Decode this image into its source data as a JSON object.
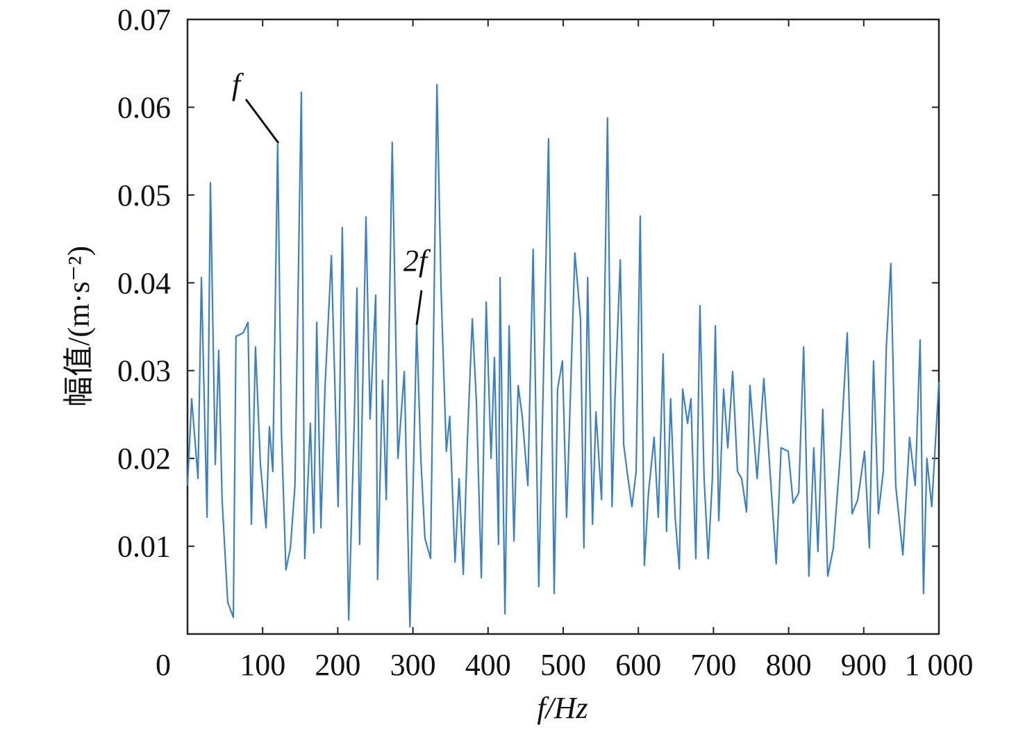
{
  "chart_data": {
    "type": "line",
    "x_label": "f/Hz",
    "y_label": "幅值/(m·s⁻²)",
    "annotations": [
      "f",
      "2f"
    ],
    "xlim": [
      0,
      1000
    ],
    "xticks": [
      0,
      100,
      200,
      300,
      400,
      500,
      600,
      700,
      800,
      900,
      {
        "value": 1000,
        "label": "1 000"
      }
    ],
    "ylim": [
      0,
      0.07
    ],
    "yticks": [
      0.01,
      0.02,
      0.03,
      0.04,
      0.05,
      0.06,
      0.07
    ],
    "series": [
      {
        "color": "#3b80c3",
        "x": [
          0,
          5.5,
          14,
          18.5,
          26,
          30.5,
          37,
          41.5,
          46,
          53.5,
          61,
          64.5,
          74,
          80.5,
          85,
          90.5,
          97,
          104.5,
          109,
          113.5,
          120,
          125,
          131,
          137,
          143,
          151.5,
          156,
          163.5,
          168,
          172,
          177.5,
          183,
          191.5,
          200.5,
          206,
          214.5,
          222,
          225.5,
          229,
          237.5,
          243,
          250.5,
          253,
          259.5,
          264.5,
          272.5,
          280,
          288.5,
          296,
          305,
          310.5,
          316,
          323.5,
          332,
          337.5,
          344.5,
          349,
          356,
          361.5,
          367,
          372.5,
          379,
          384.5,
          391,
          397.5,
          404,
          408.5,
          414,
          416,
          422.5,
          428,
          434.5,
          440,
          445.5,
          453,
          460,
          467.5,
          474,
          480.5,
          488,
          492.5,
          499,
          504.5,
          515.5,
          523,
          527.5,
          532.5,
          539,
          543.5,
          551,
          559,
          565,
          569,
          576,
          580.5,
          585,
          591.5,
          597,
          602.5,
          608,
          613.5,
          621,
          626.5,
          633,
          637.5,
          643,
          649,
          654.5,
          659,
          665.5,
          670,
          676.5,
          682,
          687.5,
          693,
          698.5,
          702.5,
          707,
          713.5,
          719,
          725.5,
          732,
          737.5,
          744,
          748.5,
          758,
          767,
          776.5,
          783.5,
          790,
          799.5,
          806,
          813.5,
          820,
          827,
          833.5,
          839,
          845.5,
          852,
          859.5,
          869,
          878,
          884.5,
          892,
          901,
          907.5,
          913,
          919.5,
          926,
          930,
          936,
          942.5,
          952,
          961,
          968.5,
          975,
          979.5,
          984,
          990.5,
          1000
        ],
        "values": [
          0.0169,
          0.0268,
          0.0177,
          0.0406,
          0.0133,
          0.0514,
          0.0193,
          0.0323,
          0.0153,
          0.0036,
          0.0019,
          0.0339,
          0.0343,
          0.0355,
          0.0125,
          0.0327,
          0.0193,
          0.0121,
          0.0236,
          0.0185,
          0.0558,
          0.0228,
          0.0073,
          0.0098,
          0.0169,
          0.0617,
          0.0086,
          0.024,
          0.0115,
          0.0355,
          0.0121,
          0.0281,
          0.0431,
          0.0145,
          0.0463,
          0.0016,
          0.0244,
          0.0394,
          0.0102,
          0.0475,
          0.0245,
          0.0386,
          0.0062,
          0.0289,
          0.0153,
          0.056,
          0.02,
          0.0299,
          0.0008,
          0.0351,
          0.02,
          0.0109,
          0.0086,
          0.0626,
          0.039,
          0.0208,
          0.0248,
          0.0082,
          0.0177,
          0.0068,
          0.022,
          0.0359,
          0.0264,
          0.0064,
          0.0378,
          0.02,
          0.0315,
          0.0102,
          0.0406,
          0.0023,
          0.0351,
          0.0106,
          0.0283,
          0.0248,
          0.0169,
          0.0438,
          0.0054,
          0.0307,
          0.0564,
          0.0046,
          0.0279,
          0.0311,
          0.0133,
          0.0434,
          0.0359,
          0.0098,
          0.0406,
          0.0125,
          0.0253,
          0.0153,
          0.0588,
          0.0145,
          0.0272,
          0.0426,
          0.0216,
          0.0185,
          0.0145,
          0.0185,
          0.0476,
          0.0078,
          0.0161,
          0.0224,
          0.0133,
          0.0319,
          0.0117,
          0.0268,
          0.0133,
          0.0074,
          0.0279,
          0.024,
          0.0268,
          0.0086,
          0.0374,
          0.0177,
          0.0086,
          0.0177,
          0.0351,
          0.0129,
          0.0279,
          0.0212,
          0.0299,
          0.0185,
          0.0177,
          0.0139,
          0.0283,
          0.0177,
          0.0291,
          0.0169,
          0.008,
          0.0212,
          0.0208,
          0.0149,
          0.0161,
          0.0327,
          0.0066,
          0.0212,
          0.0094,
          0.0256,
          0.0066,
          0.0098,
          0.0208,
          0.0343,
          0.0137,
          0.0153,
          0.0208,
          0.0098,
          0.0311,
          0.0137,
          0.0185,
          0.0327,
          0.0422,
          0.0169,
          0.009,
          0.0224,
          0.0169,
          0.0335,
          0.0046,
          0.02,
          0.0145,
          0.0287
        ]
      }
    ]
  }
}
